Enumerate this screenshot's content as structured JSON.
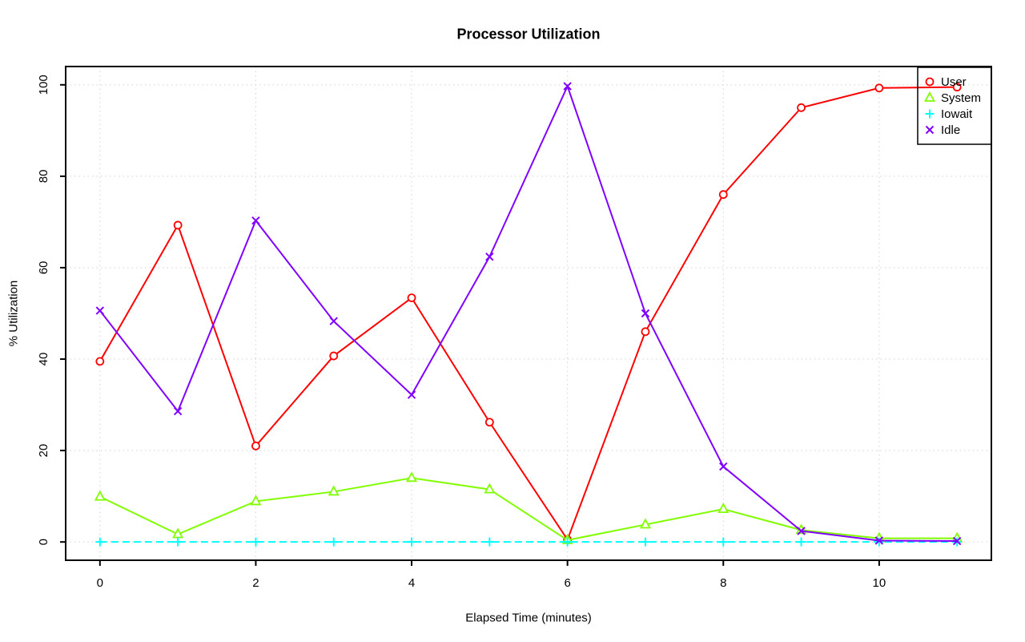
{
  "chart_data": {
    "type": "line",
    "title": "Processor Utilization",
    "xlabel": "Elapsed Time (minutes)",
    "ylabel": "% Utilization",
    "x": [
      0,
      1,
      2,
      3,
      4,
      5,
      6,
      7,
      8,
      9,
      10,
      11
    ],
    "x_ticks": [
      0,
      2,
      4,
      6,
      8,
      10
    ],
    "y_ticks": [
      0,
      20,
      40,
      60,
      80,
      100
    ],
    "xlim": [
      -0.44,
      11.44
    ],
    "ylim": [
      -4,
      104
    ],
    "grid": true,
    "grid_style": "dotted",
    "grid_color": "#d3d3d3",
    "legend_position": "top-right",
    "series": [
      {
        "name": "User",
        "color": "#ff0000",
        "marker": "circle",
        "line_style": "solid",
        "values": [
          39.5,
          69.3,
          21.0,
          40.7,
          53.4,
          26.2,
          0.5,
          46.0,
          76.0,
          95.0,
          99.3,
          99.5
        ]
      },
      {
        "name": "System",
        "color": "#80ff00",
        "marker": "triangle",
        "line_style": "solid",
        "values": [
          9.9,
          1.7,
          8.9,
          11.0,
          14.0,
          11.5,
          0.4,
          3.8,
          7.2,
          2.6,
          0.8,
          0.8
        ]
      },
      {
        "name": "Iowait",
        "color": "#00ffff",
        "marker": "plus",
        "line_style": "dashed",
        "values": [
          0,
          0,
          0,
          0,
          0,
          0,
          0,
          0,
          0,
          0,
          0,
          0
        ]
      },
      {
        "name": "Idle",
        "color": "#8000ff",
        "marker": "x",
        "line_style": "solid",
        "values": [
          50.6,
          28.6,
          70.3,
          48.3,
          32.2,
          62.4,
          99.7,
          50.0,
          16.5,
          2.4,
          0.3,
          0.2
        ]
      }
    ]
  }
}
